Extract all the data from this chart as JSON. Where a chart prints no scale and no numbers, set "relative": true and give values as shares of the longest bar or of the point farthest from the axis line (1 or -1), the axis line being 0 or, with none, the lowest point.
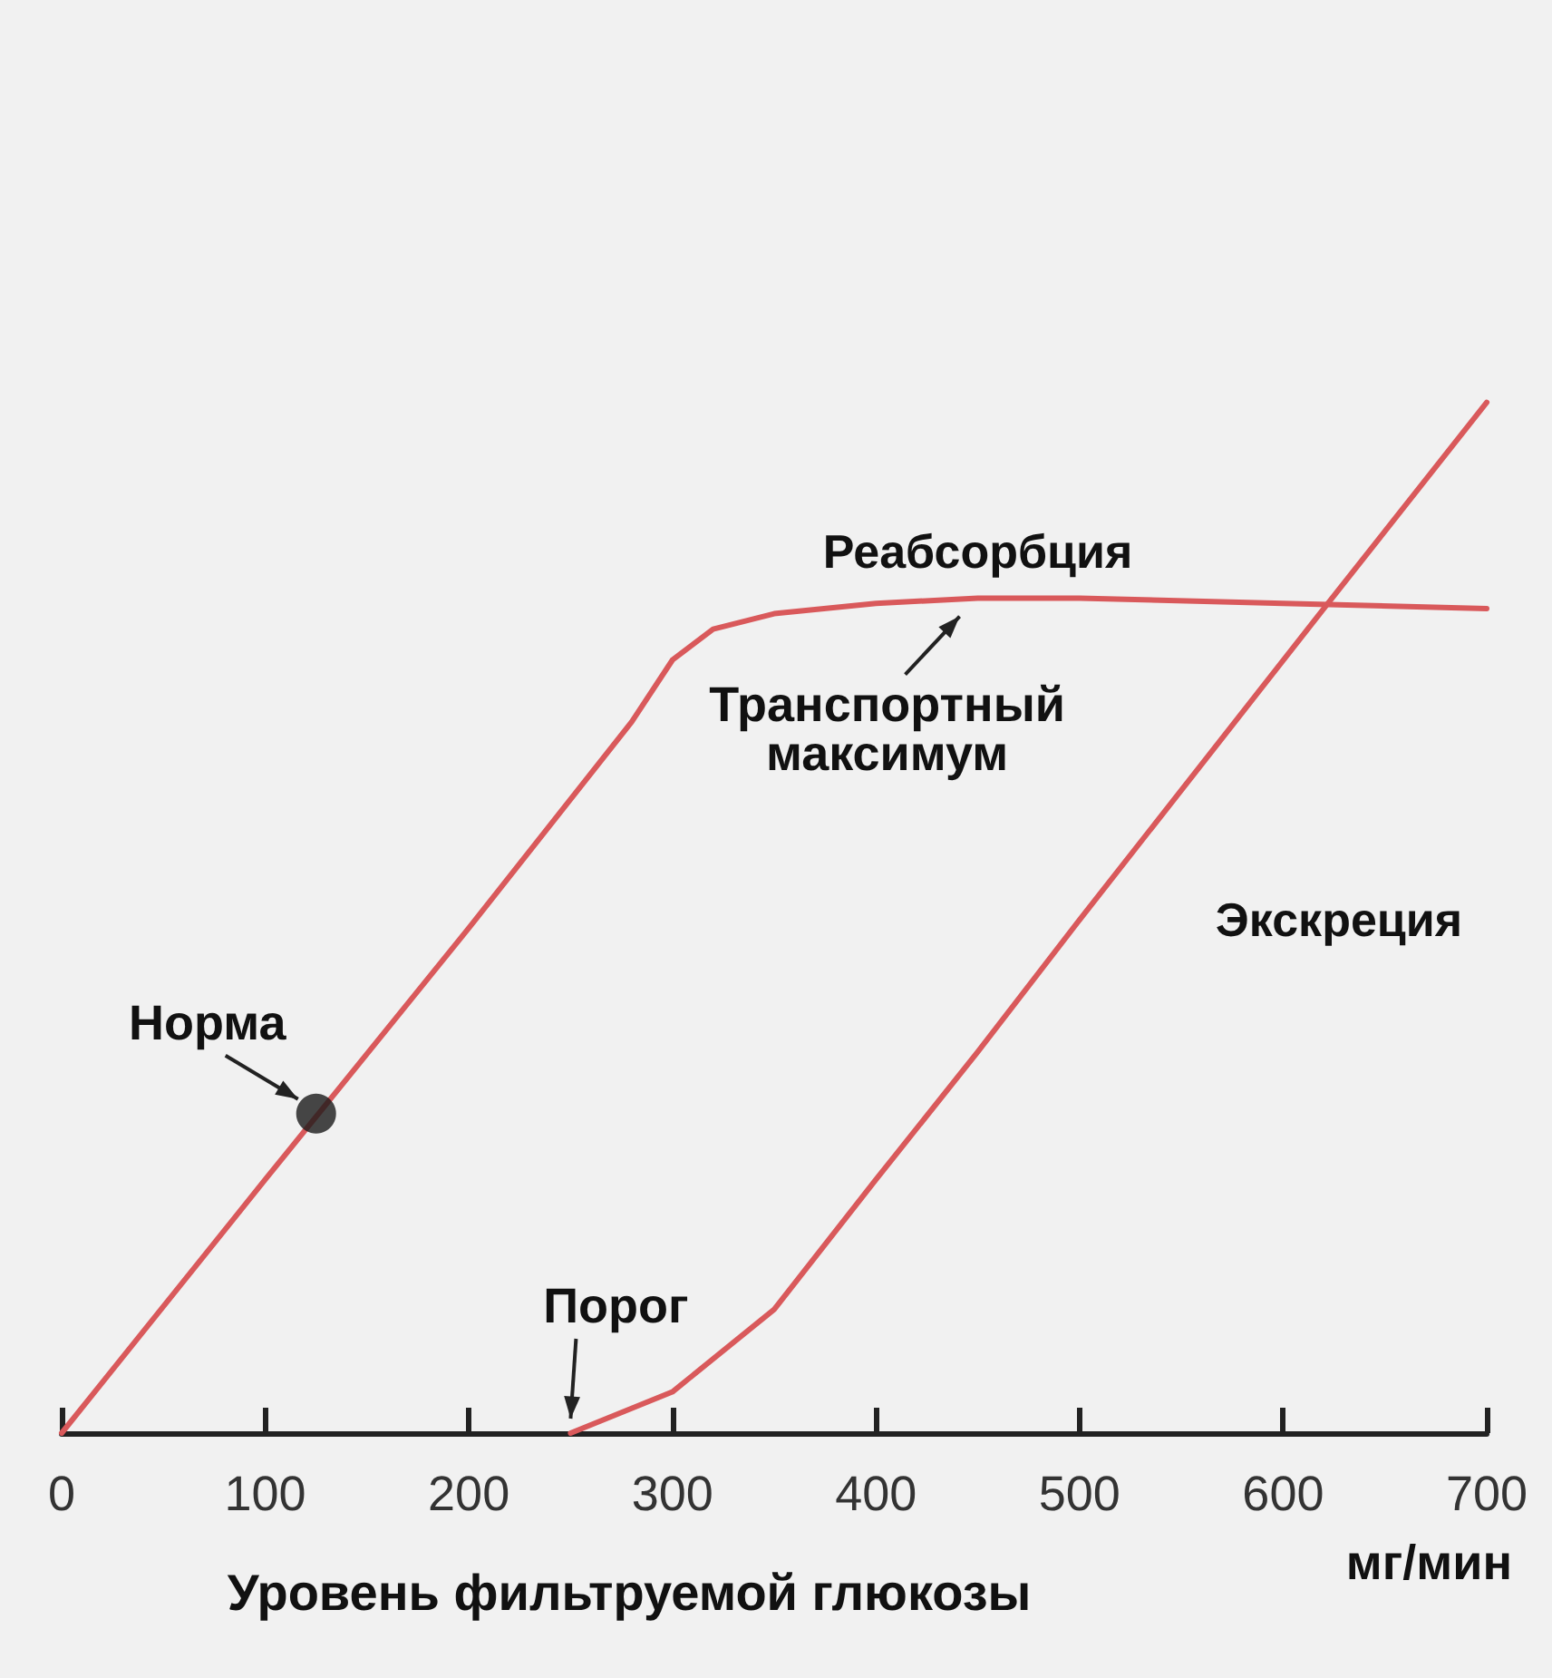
{
  "chart_data": {
    "type": "line",
    "relative": true,
    "xlabel": "Уровень фильтруемой глюкозы",
    "xlim": [
      0,
      700
    ],
    "xticks": [
      0,
      100,
      200,
      300,
      400,
      500,
      600,
      700
    ],
    "grid": false,
    "legend": false,
    "marker": "none",
    "line_style": "solid",
    "series": [
      {
        "name": "Реабсорбция",
        "color": "#d9595b",
        "x": [
          0,
          100,
          200,
          280,
          300,
          320,
          350,
          400,
          450,
          500,
          600,
          700
        ],
        "values": [
          0,
          0.246,
          0.49,
          0.69,
          0.75,
          0.78,
          0.795,
          0.805,
          0.81,
          0.81,
          0.805,
          0.8
        ]
      },
      {
        "name": "Экскреция",
        "color": "#d9595b",
        "x": [
          250,
          300,
          350,
          400,
          450,
          500,
          620,
          700
        ],
        "values": [
          0,
          0.04,
          0.12,
          0.246,
          0.37,
          0.498,
          0.8,
          1
        ]
      },
      {
        "type": "scatter",
        "color": "#1a1a1a",
        "marker": "circle",
        "x": [
          125
        ],
        "values": [
          0.31
        ]
      }
    ],
    "annotations": [
      {
        "text": "Норма",
        "x": 125,
        "y": 0.31
      },
      {
        "text": "Порог",
        "x": 250,
        "y": 0
      },
      {
        "text": "Транспортный максимум",
        "x": 450,
        "y": 0.81
      },
      "мг/мин"
    ]
  }
}
